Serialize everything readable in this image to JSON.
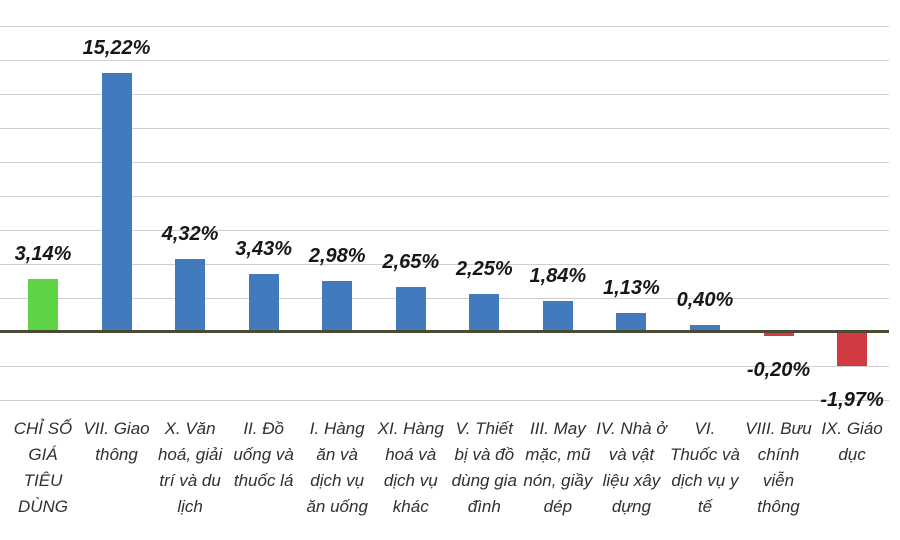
{
  "chart_data": {
    "type": "bar",
    "categories": [
      "CHỈ SỐ\nGIÁ\nTIÊU\nDÙNG",
      "VII. Giao\nthông",
      "X. Văn\nhoá, giải\ntrí và du\nlịch",
      "II. Đồ\nuống và\nthuốc lá",
      "I. Hàng\năn và\ndịch vụ\năn uống",
      "XI. Hàng\nhoá và\ndịch vụ\nkhác",
      "V. Thiết\nbị và đồ\ndùng gia\nđình",
      "III. May\nmặc, mũ\nnón, giầy\ndép",
      "IV. Nhà ở\nvà vật\nliệu xây\ndựng",
      "VI.\nThuốc và\ndịch vụ y\ntế",
      "VIII. Bưu\nchính\nviễn\nthông",
      "IX. Giáo\ndục"
    ],
    "values": [
      3.14,
      15.22,
      4.32,
      3.43,
      2.98,
      2.65,
      2.25,
      1.84,
      1.13,
      0.4,
      -0.2,
      -1.97
    ],
    "value_labels": [
      "3,14%",
      "15,22%",
      "4,32%",
      "3,43%",
      "2,98%",
      "2,65%",
      "2,25%",
      "1,84%",
      "1,13%",
      "0,40%",
      "-0,20%",
      "-1,97%"
    ],
    "bar_colors": [
      "#5ed346",
      "#4379bd",
      "#4379bd",
      "#4379bd",
      "#4379bd",
      "#4379bd",
      "#4379bd",
      "#4379bd",
      "#4379bd",
      "#4379bd",
      "#d23b41",
      "#d23b41"
    ],
    "title": "",
    "xlabel": "",
    "ylabel": "",
    "ylim": [
      -4,
      18
    ],
    "gridline_step": 2,
    "grid": true,
    "legend": false,
    "y_tick_labels_visible": false,
    "colors": {
      "cpi_highlight": "#5ed346",
      "positive": "#4379bd",
      "negative": "#d23b41",
      "gridline": "#cfcfcf",
      "axis_line": "#4b4a33",
      "value_text": "#171717",
      "category_text": "#303030"
    }
  }
}
